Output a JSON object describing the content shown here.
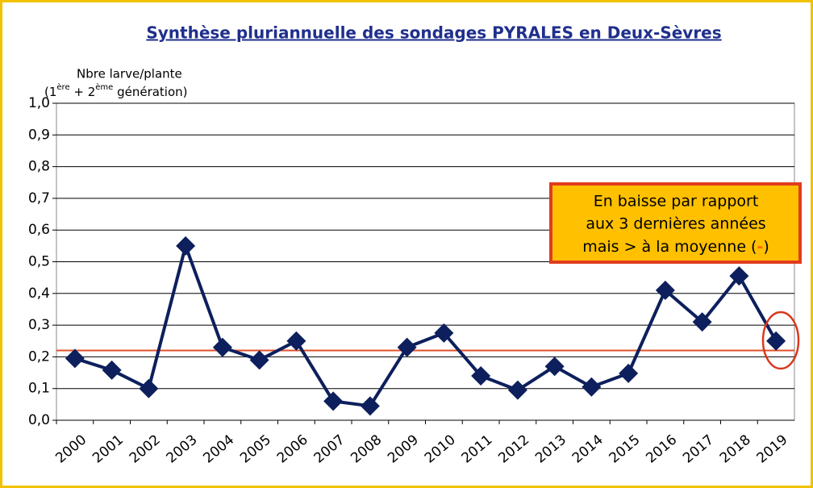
{
  "chart_data": {
    "type": "line",
    "title": "Synthèse pluriannuelle des sondages PYRALES en Deux-Sèvres",
    "y_label": "Nbre larve/plante",
    "y_label_sub": [
      "(1",
      "ère",
      " + 2",
      "ème",
      " génération)"
    ],
    "categories": [
      "2000",
      "2001",
      "2002",
      "2003",
      "2004",
      "2005",
      "2006",
      "2007",
      "2008",
      "2009",
      "2010",
      "2011",
      "2012",
      "2013",
      "2014",
      "2015",
      "2016",
      "2017",
      "2018",
      "2019"
    ],
    "series": [
      {
        "color": "#0d1f5c",
        "values": [
          0.195,
          0.158,
          0.1,
          0.55,
          0.23,
          0.19,
          0.25,
          0.06,
          0.045,
          0.23,
          0.275,
          0.14,
          0.095,
          0.17,
          0.105,
          0.148,
          0.41,
          0.31,
          0.455,
          0.25
        ]
      }
    ],
    "reference_line": {
      "value": 0.22,
      "color": "#e0502a"
    },
    "ylim": [
      0,
      1
    ],
    "yticks": [
      {
        "value": 0,
        "label": "0,0"
      },
      {
        "value": 0.1,
        "label": "0,1"
      },
      {
        "value": 0.2,
        "label": "0,2"
      },
      {
        "value": 0.3,
        "label": "0,3"
      },
      {
        "value": 0.4,
        "label": "0,4"
      },
      {
        "value": 0.5,
        "label": "0,5"
      },
      {
        "value": 0.6,
        "label": "0,6"
      },
      {
        "value": 0.7,
        "label": "0,7"
      },
      {
        "value": 0.8,
        "label": "0,8"
      },
      {
        "value": 0.9,
        "label": "0,9"
      },
      {
        "value": 1,
        "label": "1,0"
      }
    ],
    "grid": true,
    "annotation": {
      "lines": [
        "En baisse par rapport",
        "aux 3 dernières années"
      ],
      "last": [
        "mais > à la moyenne (",
        "-",
        ")"
      ]
    }
  }
}
